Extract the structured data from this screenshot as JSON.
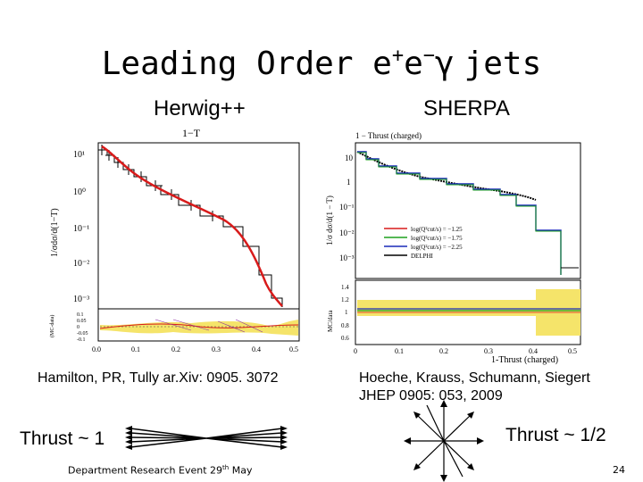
{
  "slide": {
    "title_main": "Leading Order e",
    "title_sup1": "+",
    "title_mid": "e",
    "title_sup2": "−",
    "title_gamma": "γ",
    "title_end": "jets",
    "left_heading": "Herwig++",
    "right_heading": "SHERPA",
    "left_citation": "Hamilton, PR, Tully ar.Xiv: 0905. 3072",
    "right_citation_line1": "Hoeche, Krauss, Schumann, Siegert",
    "right_citation_line2": "JHEP 0905: 053, 2009",
    "left_thrust": "Thrust ~ 1",
    "right_thrust": "Thrust ~ 1/2",
    "footer": "Department Research Event 29",
    "footer_sup": "th",
    "footer_end": " May",
    "page_number": "24"
  },
  "left_plot": {
    "top_label": "1−T",
    "ylabel": "1/σdσ/d(1−T)",
    "y_ticks": [
      "10¹",
      "10⁰",
      "10⁻¹",
      "10⁻²",
      "10⁻³"
    ],
    "x_ticks": [
      "0.0",
      "0.1",
      "0.2",
      "0.3",
      "0.4",
      "0.5"
    ],
    "ratio_ticks": [
      "0.1",
      "0.05",
      "0",
      "-0.05",
      "-0.1"
    ],
    "ratio_ylabel": "(MC-data)"
  },
  "right_plot": {
    "top_label": "1 − Thrust (charged)",
    "ylabel": "1/σ dσ/d(1 − T)",
    "y_ticks": [
      "10",
      "1",
      "10⁻¹",
      "10⁻²",
      "10⁻³"
    ],
    "ratio_ticks": [
      "1.4",
      "1.2",
      "1",
      "0.8",
      "0.6"
    ],
    "ratio_ylabel": "MC/data",
    "x_ticks": [
      "0",
      "0.1",
      "0.2",
      "0.3",
      "0.4",
      "0.5"
    ],
    "xlabel": "1-Thrust (charged)",
    "legend": [
      {
        "label": "log(Q²cut/s) = −1.25",
        "color": "#d81b1b"
      },
      {
        "label": "log(Q²cut/s) = −1.75",
        "color": "#1fa01f"
      },
      {
        "label": "log(Q²cut/s) = −2.25",
        "color": "#1a2ab8"
      },
      {
        "label": "DELPHI",
        "color": "#000000"
      }
    ]
  }
}
